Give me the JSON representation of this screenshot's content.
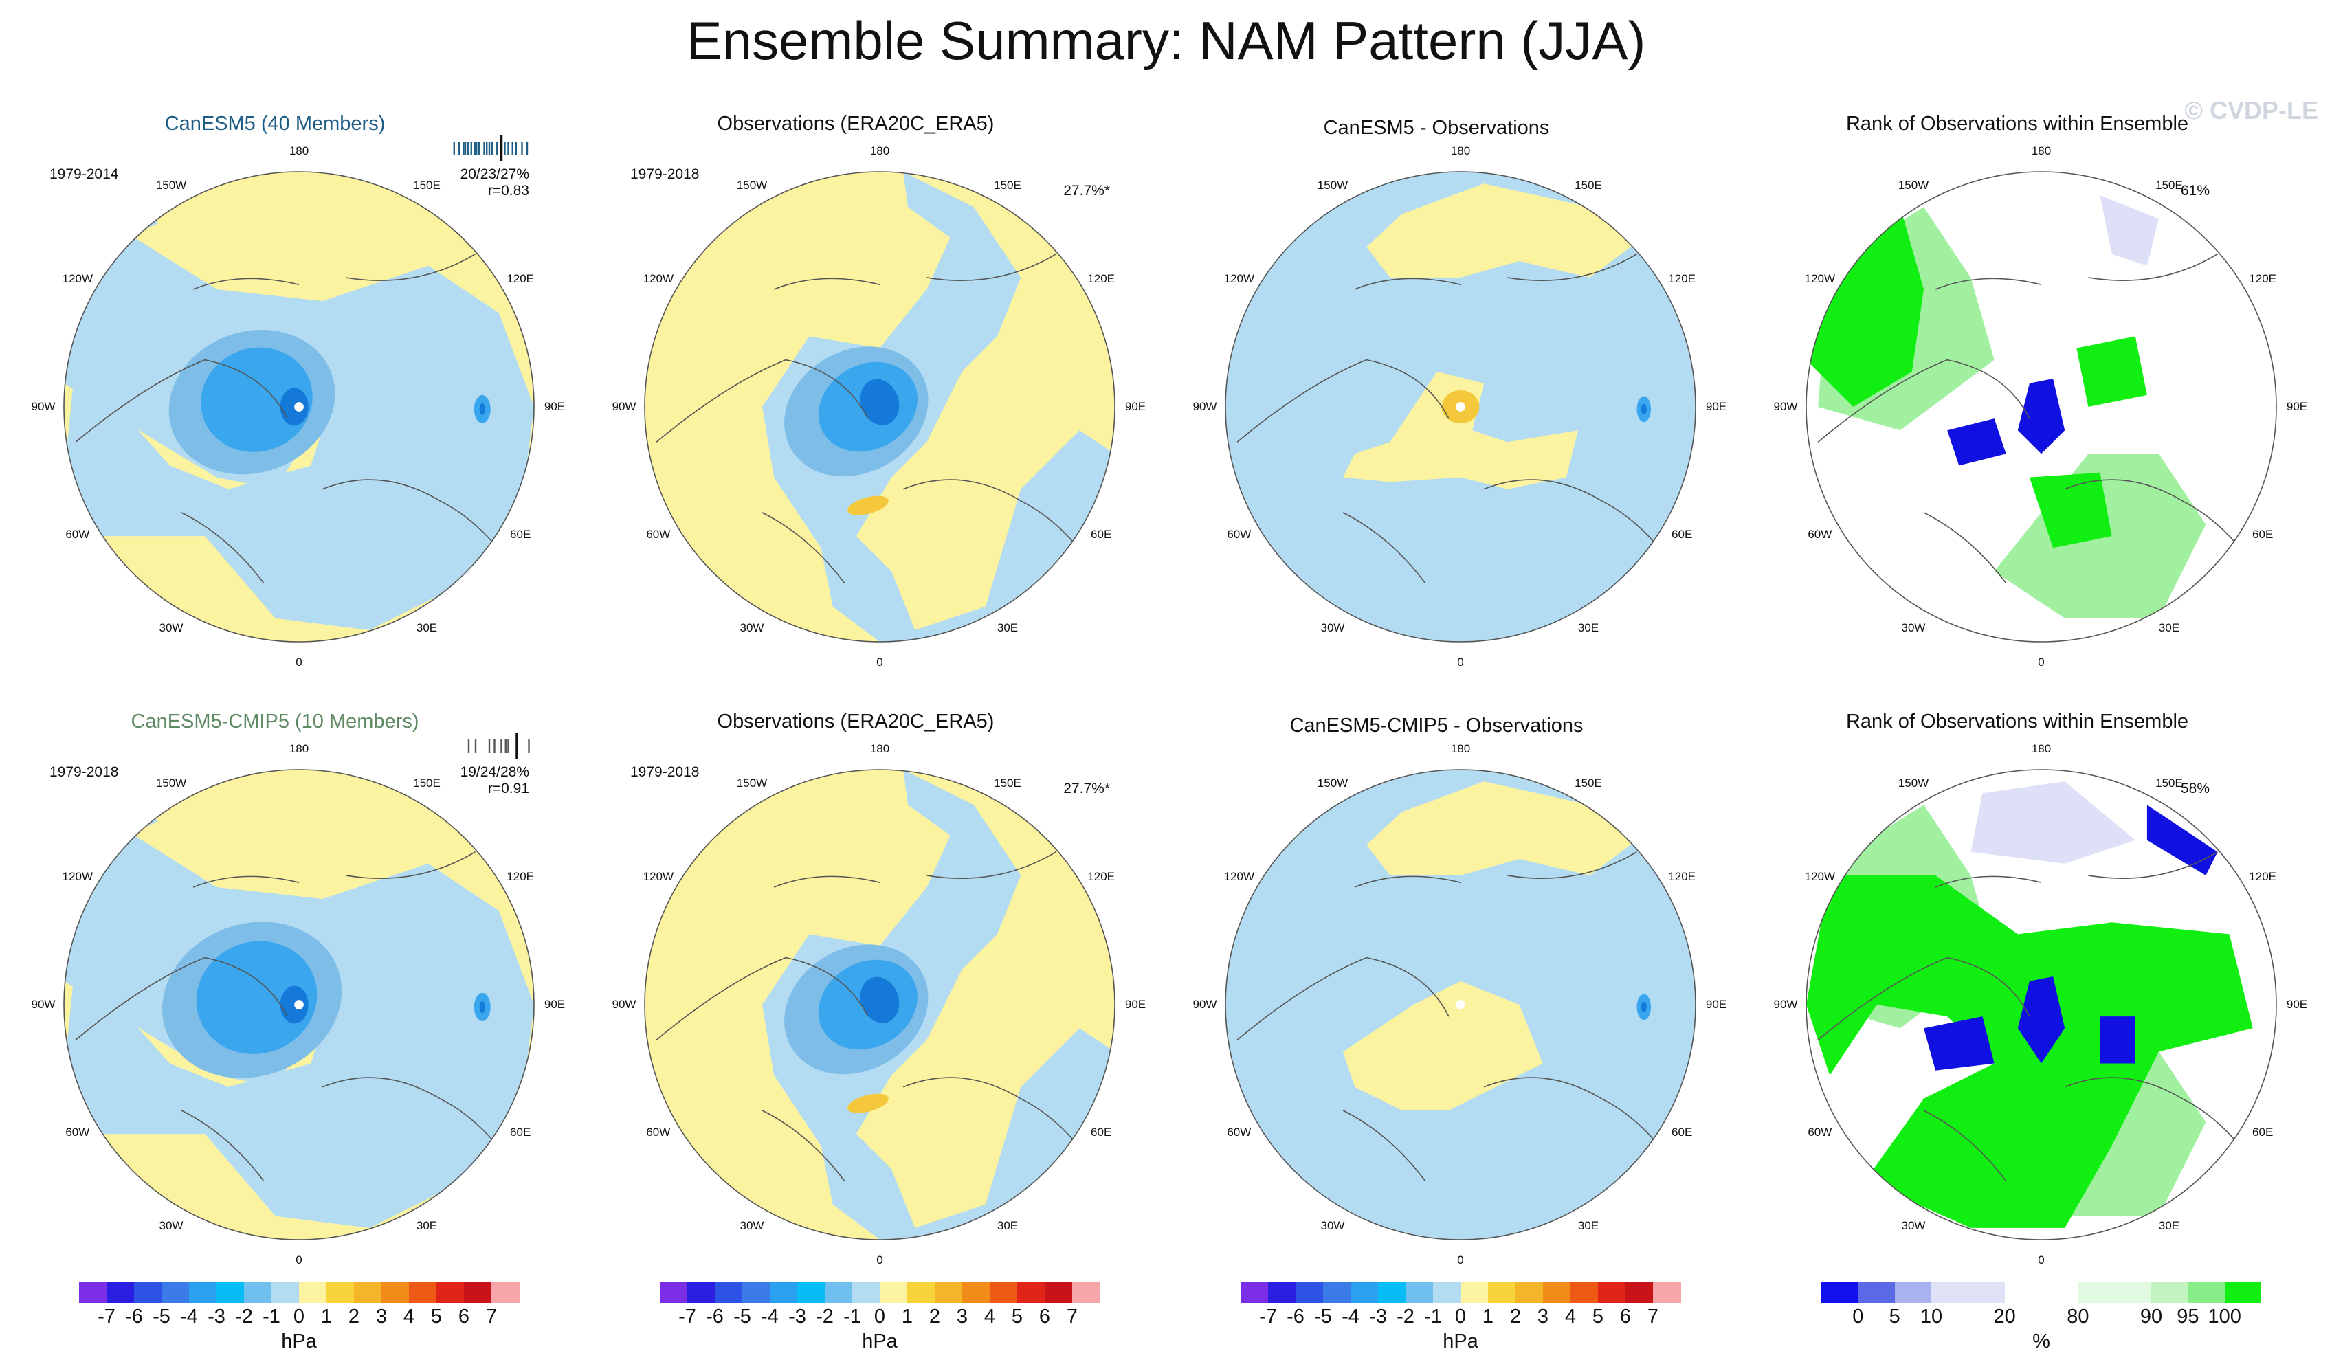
{
  "page_title": "Ensemble Summary: NAM Pattern (JJA)",
  "watermark": "© CVDP-LE",
  "lon_labels": [
    "180",
    "150E",
    "120E",
    "90E",
    "60E",
    "30E",
    "0",
    "30W",
    "60W",
    "90W",
    "120W",
    "150W"
  ],
  "colors": {
    "pos_light": "#fbf3a0",
    "neg_light": "#b3dcf2",
    "neg_mid": "#7dbde8",
    "neg_strong": "#3aa6ee",
    "neg_core": "#1479d8",
    "pos_mid": "#f4c83a",
    "rank_high": "#11ee11",
    "rank_highlight": "#a0f0a0",
    "rank_low": "#1010e0",
    "rank_lowlight": "#dde0f7"
  },
  "chart_data": [
    {
      "type": "heatmap",
      "title": "CanESM5 (40 Members)",
      "period": "1979-2014",
      "stat_line1": "20/23/27%",
      "stat_line2": "r=0.83",
      "units": "hPa",
      "pattern": "model_a",
      "hist_ticks": [
        3,
        9,
        14,
        16,
        19,
        23,
        27,
        29,
        32,
        38,
        41,
        44,
        47,
        53,
        58,
        62,
        66,
        71,
        75,
        82,
        88
      ],
      "hist_highlight": 58
    },
    {
      "type": "heatmap",
      "title": "Observations (ERA20C_ERA5)",
      "period": "1979-2018",
      "stat_line1": "27.7%*",
      "units": "hPa",
      "pattern": "obs"
    },
    {
      "type": "heatmap",
      "title": "CanESM5 - Observations",
      "units": "hPa",
      "pattern": "diff_a"
    },
    {
      "type": "heatmap",
      "title": "Rank of Observations within Ensemble",
      "stat_line1": "61%",
      "units": "%",
      "pattern": "rank_a"
    },
    {
      "type": "heatmap",
      "title": "CanESM5-CMIP5 (10 Members)",
      "period": "1979-2018",
      "stat_line1": "19/24/28%",
      "stat_line2": "r=0.91",
      "units": "hPa",
      "pattern": "model_b",
      "hist_ticks": [
        20,
        28,
        44,
        50,
        58,
        63,
        66,
        90
      ],
      "hist_highlight": 76
    },
    {
      "type": "heatmap",
      "title": "Observations (ERA20C_ERA5)",
      "period": "1979-2018",
      "stat_line1": "27.7%*",
      "units": "hPa",
      "pattern": "obs"
    },
    {
      "type": "heatmap",
      "title": "CanESM5-CMIP5 - Observations",
      "units": "hPa",
      "pattern": "diff_b"
    },
    {
      "type": "heatmap",
      "title": "Rank of Observations within Ensemble",
      "stat_line1": "58%",
      "units": "%",
      "pattern": "rank_b"
    }
  ],
  "colorbars": [
    {
      "type": "hpa",
      "unit": "hPa",
      "colors": [
        "#7b2ee6",
        "#2b1ee0",
        "#2c53e6",
        "#3a7be8",
        "#2aa0f0",
        "#08bdf5",
        "#6fc0ee",
        "#b3dcf2",
        "#fbf3a0",
        "#f7d43a",
        "#f3b628",
        "#f18c1a",
        "#ee5a16",
        "#e02418",
        "#c81418",
        "#f6a6a8"
      ],
      "ticks": [
        "-7",
        "-6",
        "-5",
        "-4",
        "-3",
        "-2",
        "-1",
        "0",
        "1",
        "2",
        "3",
        "4",
        "5",
        "6",
        "7"
      ]
    },
    {
      "type": "rank",
      "unit": "%",
      "colors": [
        "#1111ee",
        "#5a6ae6",
        "#a9b2ef",
        "#dfe2f7",
        "#dfe2f7",
        "#ffffff",
        "#ffffff",
        "#e1fae1",
        "#e1fae1",
        "#c2f4c2",
        "#88ec88",
        "#11ee11"
      ],
      "ticks": [
        "0",
        "5",
        "10",
        "20",
        "80",
        "90",
        "95",
        "100"
      ],
      "tick_boundary": [
        1,
        2,
        3,
        5,
        7,
        9,
        10,
        11
      ]
    }
  ]
}
